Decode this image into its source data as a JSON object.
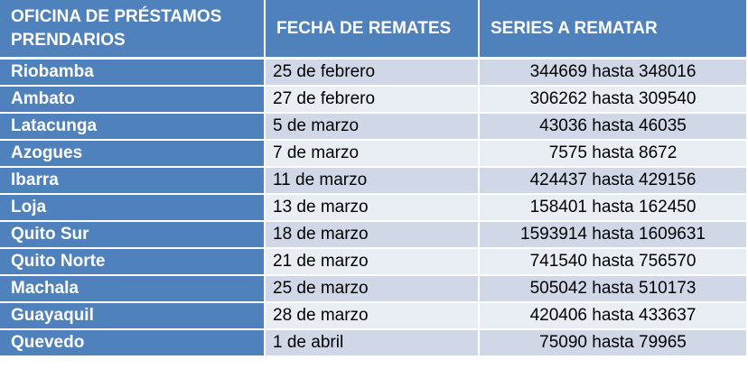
{
  "table": {
    "headers": {
      "office": "OFICINA DE PRÉSTAMOS PRENDARIOS",
      "date": "FECHA  DE REMATES",
      "series": "SERIES A REMATAR"
    },
    "rows": [
      {
        "office": "Riobamba",
        "date": "25 de febrero",
        "series": "344669 hasta 348016"
      },
      {
        "office": "Ambato",
        "date": "27 de febrero",
        "series": "306262 hasta 309540"
      },
      {
        "office": "Latacunga",
        "date": "5 de marzo",
        "series": "43036 hasta 46035"
      },
      {
        "office": "Azogues",
        "date": "7 de marzo",
        "series": "7575 hasta 8672"
      },
      {
        "office": "Ibarra",
        "date": "11 de marzo",
        "series": "424437 hasta 429156"
      },
      {
        "office": "Loja",
        "date": "13 de marzo",
        "series": "158401 hasta 162450"
      },
      {
        "office": "Quito Sur",
        "date": "18 de marzo",
        "series": "1593914 hasta 1609631"
      },
      {
        "office": "Quito Norte",
        "date": "21 de marzo",
        "series": "741540 hasta 756570"
      },
      {
        "office": "Machala",
        "date": "25 de marzo",
        "series": "505042 hasta 510173"
      },
      {
        "office": "Guayaquil",
        "date": "28 de marzo",
        "series": "420406 hasta 433637"
      },
      {
        "office": "Quevedo",
        "date": "1 de abril",
        "series": "75090 hasta 79965"
      }
    ]
  },
  "colors": {
    "header": "#4f81bd",
    "row_dark": "#d0d8e8",
    "row_light": "#e9edf4"
  }
}
